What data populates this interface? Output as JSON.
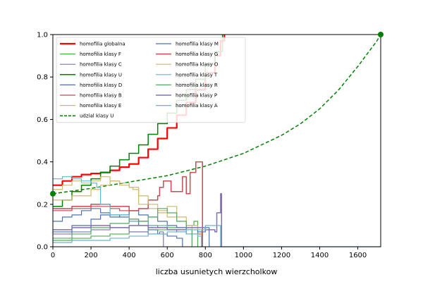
{
  "chart_data": {
    "type": "line",
    "title": "",
    "xlabel": "liczba usunietych wierzcholkow",
    "ylabel": "",
    "xlim": [
      0,
      1720
    ],
    "ylim": [
      0,
      1.0
    ],
    "xticks": [
      "0",
      "200",
      "400",
      "600",
      "800",
      "1000",
      "1200",
      "1400",
      "1600"
    ],
    "yticks": [
      "0.0",
      "0.2",
      "0.4",
      "0.6",
      "0.8",
      "1.0"
    ],
    "grid": false,
    "legend_position": "top-left",
    "legend_columns": 2,
    "series": [
      {
        "name": "homofilia globalna",
        "color": "#ff0000",
        "dash": "solid",
        "width": 2.2,
        "points": [
          [
            0,
            0.29
          ],
          [
            50,
            0.31
          ],
          [
            100,
            0.33
          ],
          [
            150,
            0.34
          ],
          [
            200,
            0.345
          ],
          [
            250,
            0.35
          ],
          [
            300,
            0.36
          ],
          [
            350,
            0.375
          ],
          [
            400,
            0.39
          ],
          [
            450,
            0.42
          ],
          [
            500,
            0.46
          ],
          [
            550,
            0.51
          ],
          [
            600,
            0.56
          ],
          [
            650,
            0.62
          ],
          [
            700,
            0.68
          ],
          [
            750,
            0.74
          ],
          [
            800,
            0.82
          ],
          [
            850,
            0.9
          ],
          [
            880,
            0.97
          ],
          [
            900,
            1.0
          ]
        ]
      },
      {
        "name": "homofilia klasy F",
        "color": "#4daf4a",
        "dash": "solid",
        "width": 1.2,
        "points": [
          [
            0,
            0.03
          ],
          [
            100,
            0.04
          ],
          [
            200,
            0.05
          ],
          [
            300,
            0.06
          ],
          [
            400,
            0.07
          ],
          [
            500,
            0.08
          ],
          [
            600,
            0.09
          ],
          [
            700,
            0.1
          ],
          [
            740,
            0.12
          ],
          [
            760,
            0.0
          ]
        ]
      },
      {
        "name": "homofilia klasy C",
        "color": "#8172b2",
        "dash": "solid",
        "width": 1.2,
        "points": [
          [
            0,
            0.06
          ],
          [
            100,
            0.07
          ],
          [
            200,
            0.08
          ],
          [
            300,
            0.09
          ],
          [
            400,
            0.07
          ],
          [
            500,
            0.06
          ],
          [
            560,
            0.07
          ],
          [
            580,
            0.0
          ]
        ]
      },
      {
        "name": "homofilia klasy U",
        "color": "#008000",
        "dash": "solid",
        "width": 1.5,
        "points": [
          [
            0,
            0.19
          ],
          [
            50,
            0.22
          ],
          [
            100,
            0.26
          ],
          [
            150,
            0.29
          ],
          [
            200,
            0.32
          ],
          [
            250,
            0.35
          ],
          [
            300,
            0.38
          ],
          [
            350,
            0.41
          ],
          [
            400,
            0.44
          ],
          [
            450,
            0.48
          ],
          [
            500,
            0.53
          ],
          [
            550,
            0.58
          ],
          [
            600,
            0.63
          ],
          [
            650,
            0.69
          ],
          [
            700,
            0.74
          ],
          [
            750,
            0.79
          ],
          [
            800,
            0.86
          ],
          [
            850,
            0.92
          ],
          [
            890,
            1.0
          ]
        ]
      },
      {
        "name": "homofilia klasy D",
        "color": "#4c72b0",
        "dash": "solid",
        "width": 1.2,
        "points": [
          [
            0,
            0.12
          ],
          [
            50,
            0.14
          ],
          [
            100,
            0.15
          ],
          [
            150,
            0.17
          ],
          [
            200,
            0.18
          ],
          [
            250,
            0.16
          ],
          [
            300,
            0.15
          ],
          [
            350,
            0.14
          ],
          [
            400,
            0.12
          ],
          [
            450,
            0.1
          ],
          [
            500,
            0.08
          ],
          [
            550,
            0.06
          ],
          [
            600,
            0.05
          ],
          [
            650,
            0.04
          ],
          [
            680,
            0.0
          ]
        ]
      },
      {
        "name": "homofilia klasy B",
        "color": "#c44e52",
        "dash": "solid",
        "width": 1.2,
        "points": [
          [
            0,
            0.17
          ],
          [
            100,
            0.18
          ],
          [
            200,
            0.19
          ],
          [
            300,
            0.18
          ],
          [
            350,
            0.17
          ],
          [
            400,
            0.13
          ],
          [
            450,
            0.12
          ],
          [
            500,
            0.1
          ],
          [
            550,
            0.09
          ],
          [
            600,
            0.08
          ],
          [
            650,
            0.07
          ],
          [
            700,
            0.06
          ],
          [
            750,
            0.06
          ],
          [
            780,
            0.0
          ]
        ]
      },
      {
        "name": "homofilia klasy E",
        "color": "#ccb974",
        "dash": "solid",
        "width": 1.2,
        "points": [
          [
            0,
            0.27
          ],
          [
            50,
            0.29
          ],
          [
            100,
            0.31
          ],
          [
            150,
            0.3
          ],
          [
            200,
            0.31
          ],
          [
            250,
            0.33
          ],
          [
            300,
            0.31
          ],
          [
            350,
            0.29
          ],
          [
            400,
            0.28
          ],
          [
            420,
            0.27
          ],
          [
            450,
            0.2
          ],
          [
            500,
            0.18
          ],
          [
            550,
            0.17
          ],
          [
            600,
            0.19
          ],
          [
            650,
            0.14
          ],
          [
            700,
            0.1
          ],
          [
            760,
            0.08
          ],
          [
            780,
            0.0
          ]
        ]
      },
      {
        "name": "udzial klasy U",
        "color": "#008000",
        "dash": "dashed",
        "width": 1.5,
        "points": [
          [
            0,
            0.25
          ],
          [
            200,
            0.275
          ],
          [
            400,
            0.305
          ],
          [
            600,
            0.335
          ],
          [
            800,
            0.38
          ],
          [
            1000,
            0.44
          ],
          [
            1200,
            0.525
          ],
          [
            1300,
            0.58
          ],
          [
            1400,
            0.65
          ],
          [
            1500,
            0.74
          ],
          [
            1600,
            0.85
          ],
          [
            1650,
            0.91
          ],
          [
            1700,
            0.97
          ],
          [
            1720,
            1.0
          ]
        ]
      },
      {
        "name": "homofilia klasy M",
        "color": "#4c72b0",
        "dash": "solid",
        "width": 1.2,
        "points": [
          [
            0,
            0.07
          ],
          [
            100,
            0.1
          ],
          [
            200,
            0.13
          ],
          [
            250,
            0.15
          ],
          [
            300,
            0.14
          ],
          [
            350,
            0.15
          ],
          [
            400,
            0.17
          ],
          [
            450,
            0.15
          ],
          [
            500,
            0.14
          ],
          [
            550,
            0.12
          ],
          [
            600,
            0.1
          ],
          [
            650,
            0.09
          ],
          [
            700,
            0.08
          ],
          [
            760,
            0.07
          ],
          [
            800,
            0.09
          ],
          [
            820,
            0.0
          ]
        ]
      },
      {
        "name": "homofilia klasy G",
        "color": "#c44e52",
        "dash": "solid",
        "width": 1.5,
        "points": [
          [
            0,
            0.18
          ],
          [
            100,
            0.19
          ],
          [
            200,
            0.2
          ],
          [
            300,
            0.19
          ],
          [
            400,
            0.17
          ],
          [
            450,
            0.18
          ],
          [
            500,
            0.22
          ],
          [
            550,
            0.24
          ],
          [
            560,
            0.28
          ],
          [
            580,
            0.31
          ],
          [
            620,
            0.26
          ],
          [
            650,
            0.26
          ],
          [
            680,
            0.33
          ],
          [
            700,
            0.25
          ],
          [
            720,
            0.35
          ],
          [
            750,
            0.4
          ],
          [
            780,
            0.4
          ],
          [
            785,
            0.0
          ]
        ]
      },
      {
        "name": "homofilia klasy O",
        "color": "#ccb974",
        "dash": "solid",
        "width": 1.2,
        "points": [
          [
            0,
            0.22
          ],
          [
            100,
            0.24
          ],
          [
            200,
            0.27
          ],
          [
            250,
            0.29
          ],
          [
            300,
            0.31
          ],
          [
            350,
            0.3
          ],
          [
            400,
            0.28
          ],
          [
            450,
            0.24
          ],
          [
            500,
            0.2
          ],
          [
            550,
            0.16
          ],
          [
            600,
            0.14
          ],
          [
            650,
            0.12
          ],
          [
            700,
            0.1
          ],
          [
            730,
            0.0
          ]
        ]
      },
      {
        "name": "homofilia klasy T",
        "color": "#64b5cd",
        "dash": "solid",
        "width": 1.2,
        "points": [
          [
            0,
            0.32
          ],
          [
            50,
            0.33
          ],
          [
            100,
            0.32
          ],
          [
            150,
            0.31
          ],
          [
            200,
            0.3
          ],
          [
            230,
            0.28
          ],
          [
            250,
            0.2
          ],
          [
            300,
            0.15
          ],
          [
            400,
            0.12
          ],
          [
            500,
            0.1
          ],
          [
            600,
            0.08
          ],
          [
            700,
            0.06
          ],
          [
            760,
            0.05
          ],
          [
            780,
            0.0
          ]
        ]
      },
      {
        "name": "homofilia klasy R",
        "color": "#55a868",
        "dash": "solid",
        "width": 1.2,
        "points": [
          [
            0,
            0.04
          ],
          [
            100,
            0.06
          ],
          [
            200,
            0.09
          ],
          [
            300,
            0.11
          ],
          [
            400,
            0.13
          ],
          [
            450,
            0.12
          ],
          [
            500,
            0.14
          ],
          [
            550,
            0.18
          ],
          [
            600,
            0.16
          ],
          [
            650,
            0.12
          ],
          [
            700,
            0.08
          ],
          [
            730,
            0.0
          ]
        ]
      },
      {
        "name": "homofilia klasy P",
        "color": "#8172b2",
        "dash": "solid",
        "width": 1.5,
        "points": [
          [
            0,
            0.08
          ],
          [
            100,
            0.09
          ],
          [
            200,
            0.1
          ],
          [
            300,
            0.09
          ],
          [
            400,
            0.1
          ],
          [
            500,
            0.09
          ],
          [
            600,
            0.08
          ],
          [
            700,
            0.09
          ],
          [
            800,
            0.08
          ],
          [
            850,
            0.07
          ],
          [
            860,
            0.16
          ],
          [
            880,
            0.25
          ],
          [
            885,
            0.0
          ]
        ]
      },
      {
        "name": "homofilia klasy A",
        "color": "#64b5cd",
        "dash": "solid",
        "width": 1.2,
        "points": [
          [
            0,
            0.02
          ],
          [
            100,
            0.03
          ],
          [
            200,
            0.03
          ],
          [
            300,
            0.04
          ],
          [
            400,
            0.05
          ],
          [
            500,
            0.06
          ],
          [
            600,
            0.07
          ],
          [
            700,
            0.08
          ],
          [
            800,
            0.1
          ],
          [
            880,
            0.0
          ],
          [
            1720,
            0.0
          ]
        ]
      }
    ],
    "markers": [
      {
        "x": 0,
        "y": 0.25,
        "color": "#008000"
      },
      {
        "x": 1720,
        "y": 1.0,
        "color": "#008000"
      }
    ]
  }
}
